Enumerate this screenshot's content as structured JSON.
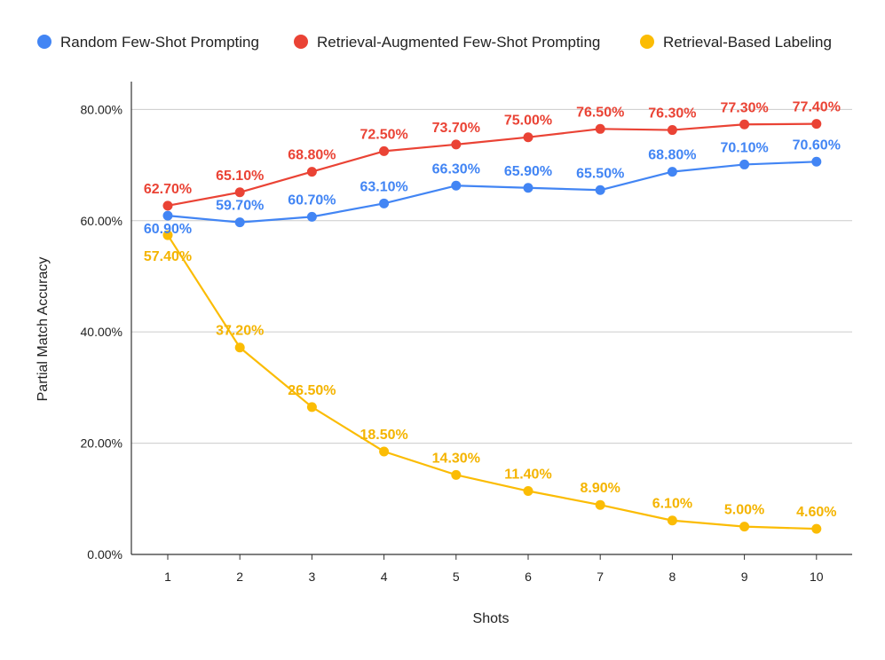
{
  "chart_data": {
    "type": "line",
    "title": "",
    "xlabel": "Shots",
    "ylabel": "Partial Match Accuracy",
    "x": [
      1,
      2,
      3,
      4,
      5,
      6,
      7,
      8,
      9,
      10
    ],
    "ylim": [
      0,
      85
    ],
    "yticks": [
      0,
      20,
      40,
      60,
      80
    ],
    "ytick_labels": [
      "0.00%",
      "20.00%",
      "40.00%",
      "60.00%",
      "80.00%"
    ],
    "grid": true,
    "legend_position": "top",
    "series": [
      {
        "name": "Random Few-Shot Prompting",
        "color": "#4285f4",
        "values": [
          60.9,
          59.7,
          60.7,
          63.1,
          66.3,
          65.9,
          65.5,
          68.8,
          70.1,
          70.6
        ],
        "labels": [
          "60.90%",
          "59.70%",
          "60.70%",
          "63.10%",
          "66.30%",
          "65.90%",
          "65.50%",
          "68.80%",
          "70.10%",
          "70.60%"
        ]
      },
      {
        "name": "Retrieval-Augmented Few-Shot Prompting",
        "color": "#ea4335",
        "values": [
          62.7,
          65.1,
          68.8,
          72.5,
          73.7,
          75.0,
          76.5,
          76.3,
          77.3,
          77.4
        ],
        "labels": [
          "62.70%",
          "65.10%",
          "68.80%",
          "72.50%",
          "73.70%",
          "75.00%",
          "76.50%",
          "76.30%",
          "77.30%",
          "77.40%"
        ]
      },
      {
        "name": "Retrieval-Based Labeling",
        "color": "#fbbc04",
        "label_color": "#f4b400",
        "values": [
          57.4,
          37.2,
          26.5,
          18.5,
          14.3,
          11.4,
          8.9,
          6.1,
          5.0,
          4.6
        ],
        "labels": [
          "57.40%",
          "37.20%",
          "26.50%",
          "18.50%",
          "14.30%",
          "11.40%",
          "8.90%",
          "6.10%",
          "5.00%",
          "4.60%"
        ]
      }
    ]
  }
}
